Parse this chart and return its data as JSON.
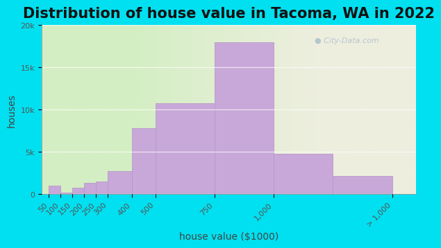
{
  "title": "Distribution of house value in Tacoma, WA in 2022",
  "xlabel": "house value ($1000)",
  "ylabel": "houses",
  "bar_edges": [
    0,
    50,
    100,
    150,
    200,
    250,
    300,
    400,
    500,
    750,
    1000,
    1250,
    1500
  ],
  "bar_heights": [
    0,
    1000,
    200,
    800,
    1300,
    1500,
    2700,
    7800,
    10800,
    18000,
    4800,
    2200
  ],
  "xtick_positions": [
    50,
    100,
    150,
    200,
    250,
    300,
    400,
    500,
    750,
    1000,
    1500
  ],
  "xtick_labels": [
    "50",
    "100",
    "150",
    "200",
    "250",
    "300",
    "400",
    "500",
    "750",
    "1,000",
    "> 1,000"
  ],
  "bar_color": "#c8a8d8",
  "bar_edge_color": "#b898c8",
  "bg_color_left": "#d4eec4",
  "bg_color_right": "#eeeedf",
  "outer_bg": "#00e0f0",
  "ylim": [
    0,
    20000
  ],
  "yticks": [
    0,
    5000,
    10000,
    15000,
    20000
  ],
  "ytick_labels": [
    "0",
    "5k",
    "10k",
    "15k",
    "20k"
  ],
  "watermark_text": "City-Data.com",
  "title_fontsize": 15,
  "axis_label_fontsize": 10,
  "tick_fontsize": 8
}
